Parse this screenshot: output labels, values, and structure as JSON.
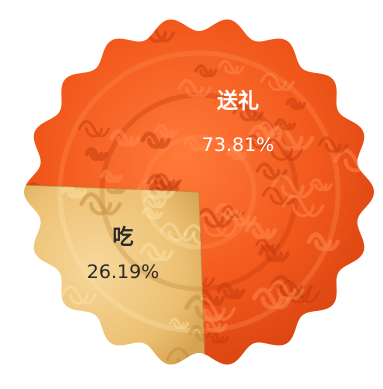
{
  "chart_data": {
    "type": "pie",
    "slices": [
      {
        "name": "送礼",
        "value": 73.81,
        "label": "73.81%"
      },
      {
        "name": "吃",
        "value": 26.19,
        "label": "26.19%"
      }
    ],
    "colors": {
      "gift": "#f2581c",
      "gift_light": "#ff8a4d",
      "gift_dark": "#c23a0c",
      "eat": "#eec377",
      "eat_light": "#fbe3a8",
      "eat_dark": "#c48a3a"
    }
  }
}
